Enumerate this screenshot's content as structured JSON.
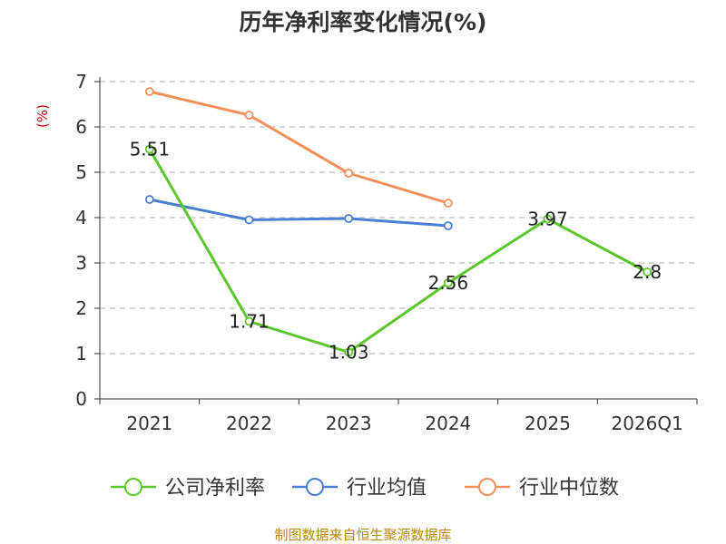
{
  "chart_data": {
    "type": "line",
    "title": "历年净利率变化情况(%)",
    "ylabel": "(%)",
    "xlabel": "",
    "categories": [
      "2021",
      "2022",
      "2023",
      "2024",
      "2025",
      "2026Q1"
    ],
    "ylim": [
      0,
      7
    ],
    "yticks": [
      0,
      1,
      2,
      3,
      4,
      5,
      6,
      7
    ],
    "grid": true,
    "legend_position": "bottom",
    "series": [
      {
        "name": "公司净利率",
        "color": "#5cc72a",
        "values": [
          5.51,
          1.71,
          1.03,
          2.56,
          3.97,
          2.8
        ],
        "labels": [
          "5.51",
          "1.71",
          "1.03",
          "2.56",
          "3.97",
          "2.8"
        ]
      },
      {
        "name": "行业均值",
        "color": "#4a7fd6",
        "values": [
          4.4,
          3.95,
          3.98,
          3.82,
          null,
          null
        ]
      },
      {
        "name": "行业中位数",
        "color": "#f58f5a",
        "values": [
          6.78,
          6.26,
          4.98,
          4.32,
          null,
          null
        ]
      }
    ],
    "source": "制图数据来自恒生聚源数据库"
  }
}
